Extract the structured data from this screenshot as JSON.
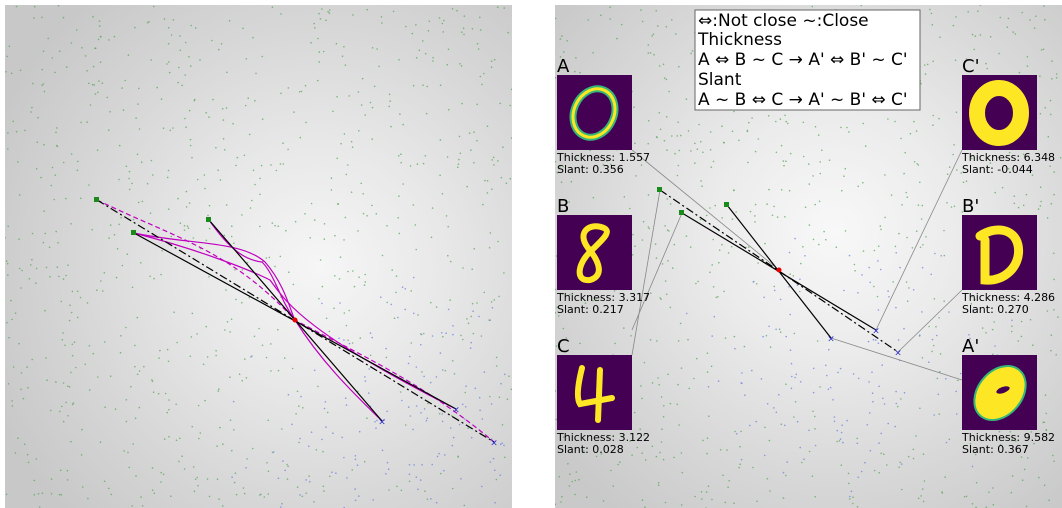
{
  "legend": {
    "lines": [
      "⇔:Not close  ~:Close",
      "Thickness",
      "A ⇔ B ~ C → A' ⇔ B' ~ C'",
      "Slant",
      "A ~ B ⇔ C → A' ~ B' ⇔ C'"
    ]
  },
  "samples": [
    {
      "label": "A",
      "thickness": "Thickness: 1.557",
      "slant": "Slant: 0.356"
    },
    {
      "label": "B",
      "thickness": "Thickness: 3.317",
      "slant": "Slant: 0.217"
    },
    {
      "label": "C",
      "thickness": "Thickness: 3.122",
      "slant": "Slant: 0.028"
    },
    {
      "label": "C'",
      "thickness": "Thickness: 6.348",
      "slant": "Slant: -0.044"
    },
    {
      "label": "B'",
      "thickness": "Thickness: 4.286",
      "slant": "Slant: 0.270"
    },
    {
      "label": "A'",
      "thickness": "Thickness: 9.582",
      "slant": "Slant: 0.367"
    }
  ]
}
